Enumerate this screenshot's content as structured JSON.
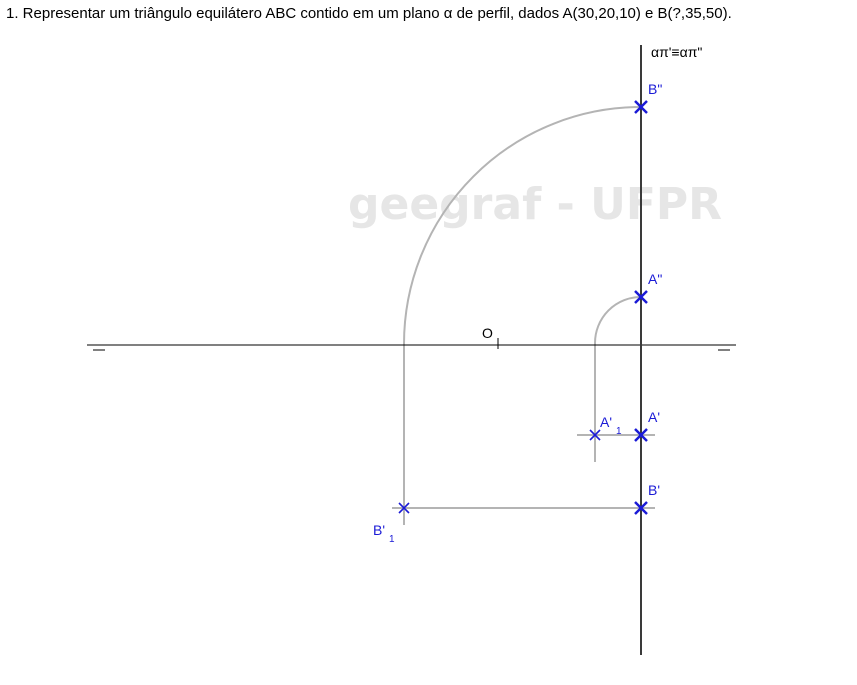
{
  "problem": {
    "text": "1. Representar um triângulo equilátero ABC contido em um plano α de perfil, dados A(30,20,10) e B(?,35,50)."
  },
  "watermark": "geegraf - UFPR",
  "labels": {
    "plane_traces": "απ'≡απ\"",
    "origin": "O",
    "b_vertical": "B\"",
    "a_vertical": "A\"",
    "a_horizontal": "A'",
    "b_horizontal": "B'",
    "a1_main": "A'",
    "a1_sub": "1",
    "b1_main": "B'",
    "b1_sub": "1"
  },
  "colors": {
    "points": "#1a1ad6",
    "construction": "#b4b4b4",
    "lines": "#000000",
    "watermark": "#e6e6e6"
  }
}
